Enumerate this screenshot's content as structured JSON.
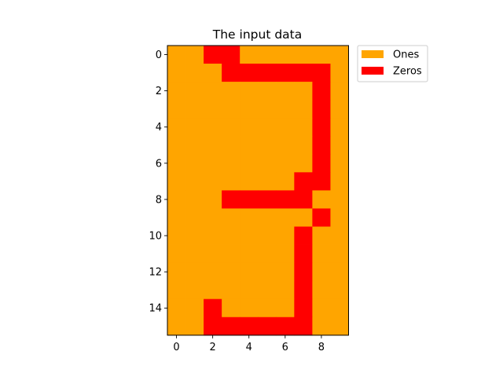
{
  "chart_data": {
    "type": "heatmap",
    "title": "The input data",
    "xlabel": "",
    "ylabel": "",
    "xlim": [
      -0.5,
      9.5
    ],
    "ylim": [
      15.5,
      -0.5
    ],
    "x_ticks": [
      "0",
      "2",
      "4",
      "6",
      "8"
    ],
    "y_ticks": [
      "0",
      "2",
      "4",
      "6",
      "8",
      "10",
      "12",
      "14"
    ],
    "grid": false,
    "legend_position": "outside upper right",
    "legend": [
      {
        "label": "Ones",
        "value": 1,
        "color": "#FFA500"
      },
      {
        "label": "Zeros",
        "value": 0,
        "color": "#FF0000"
      }
    ],
    "matrix": [
      [
        1,
        1,
        0,
        0,
        1,
        1,
        1,
        1,
        1,
        1
      ],
      [
        1,
        1,
        1,
        0,
        0,
        0,
        0,
        0,
        0,
        1
      ],
      [
        1,
        1,
        1,
        1,
        1,
        1,
        1,
        1,
        0,
        1
      ],
      [
        1,
        1,
        1,
        1,
        1,
        1,
        1,
        1,
        0,
        1
      ],
      [
        1,
        1,
        1,
        1,
        1,
        1,
        1,
        1,
        0,
        1
      ],
      [
        1,
        1,
        1,
        1,
        1,
        1,
        1,
        1,
        0,
        1
      ],
      [
        1,
        1,
        1,
        1,
        1,
        1,
        1,
        1,
        0,
        1
      ],
      [
        1,
        1,
        1,
        1,
        1,
        1,
        1,
        0,
        0,
        1
      ],
      [
        1,
        1,
        1,
        0,
        0,
        0,
        0,
        0,
        1,
        1
      ],
      [
        1,
        1,
        1,
        1,
        1,
        1,
        1,
        1,
        0,
        1
      ],
      [
        1,
        1,
        1,
        1,
        1,
        1,
        1,
        0,
        1,
        1
      ],
      [
        1,
        1,
        1,
        1,
        1,
        1,
        1,
        0,
        1,
        1
      ],
      [
        1,
        1,
        1,
        1,
        1,
        1,
        1,
        0,
        1,
        1
      ],
      [
        1,
        1,
        1,
        1,
        1,
        1,
        1,
        0,
        1,
        1
      ],
      [
        1,
        1,
        0,
        1,
        1,
        1,
        1,
        0,
        1,
        1
      ],
      [
        1,
        1,
        0,
        0,
        0,
        0,
        0,
        0,
        1,
        1
      ]
    ]
  }
}
